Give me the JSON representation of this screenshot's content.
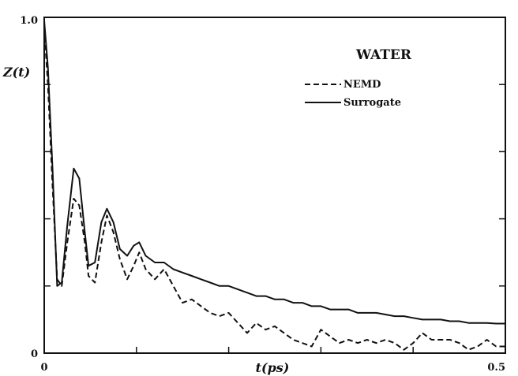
{
  "chart_data": {
    "type": "line",
    "title": "WATER",
    "xlabel": "t(ps)",
    "ylabel": "Z(t)",
    "xlim": [
      0,
      0.5
    ],
    "ylim": [
      0,
      1.0
    ],
    "x_tick_labels": [
      "0",
      "0.5"
    ],
    "y_tick_labels": [
      "0",
      "1.0"
    ],
    "grid": false,
    "legend_position": "top-right",
    "series": [
      {
        "name": "NEMD",
        "style": "dashed",
        "color": "#111111",
        "x": [
          0,
          0.004,
          0.009,
          0.014,
          0.019,
          0.025,
          0.032,
          0.038,
          0.044,
          0.048,
          0.055,
          0.062,
          0.068,
          0.075,
          0.082,
          0.09,
          0.097,
          0.103,
          0.11,
          0.12,
          0.13,
          0.14,
          0.15,
          0.16,
          0.17,
          0.18,
          0.19,
          0.2,
          0.21,
          0.22,
          0.23,
          0.24,
          0.25,
          0.26,
          0.27,
          0.28,
          0.29,
          0.3,
          0.31,
          0.32,
          0.33,
          0.34,
          0.35,
          0.36,
          0.37,
          0.38,
          0.39,
          0.4,
          0.41,
          0.42,
          0.43,
          0.44,
          0.45,
          0.46,
          0.47,
          0.48,
          0.49,
          0.5
        ],
        "y": [
          0.97,
          0.8,
          0.5,
          0.22,
          0.2,
          0.33,
          0.46,
          0.44,
          0.33,
          0.23,
          0.21,
          0.33,
          0.41,
          0.36,
          0.28,
          0.22,
          0.26,
          0.3,
          0.25,
          0.22,
          0.25,
          0.2,
          0.15,
          0.16,
          0.14,
          0.12,
          0.11,
          0.12,
          0.09,
          0.06,
          0.09,
          0.07,
          0.08,
          0.06,
          0.04,
          0.03,
          0.02,
          0.07,
          0.05,
          0.03,
          0.04,
          0.03,
          0.04,
          0.03,
          0.04,
          0.03,
          0.01,
          0.03,
          0.06,
          0.04,
          0.04,
          0.04,
          0.03,
          0.01,
          0.02,
          0.04,
          0.02,
          0.02
        ]
      },
      {
        "name": "Surrogate",
        "style": "solid",
        "color": "#111111",
        "x": [
          0,
          0.004,
          0.009,
          0.014,
          0.019,
          0.025,
          0.032,
          0.038,
          0.044,
          0.048,
          0.055,
          0.062,
          0.068,
          0.075,
          0.082,
          0.09,
          0.097,
          0.103,
          0.11,
          0.12,
          0.13,
          0.14,
          0.15,
          0.16,
          0.17,
          0.18,
          0.19,
          0.2,
          0.21,
          0.22,
          0.23,
          0.24,
          0.25,
          0.26,
          0.27,
          0.28,
          0.29,
          0.3,
          0.31,
          0.32,
          0.33,
          0.34,
          0.35,
          0.36,
          0.37,
          0.38,
          0.39,
          0.4,
          0.41,
          0.42,
          0.43,
          0.44,
          0.45,
          0.46,
          0.47,
          0.48,
          0.49,
          0.5
        ],
        "y": [
          0.99,
          0.85,
          0.55,
          0.2,
          0.21,
          0.38,
          0.55,
          0.52,
          0.36,
          0.26,
          0.27,
          0.39,
          0.43,
          0.39,
          0.31,
          0.29,
          0.32,
          0.33,
          0.29,
          0.27,
          0.27,
          0.25,
          0.24,
          0.23,
          0.22,
          0.21,
          0.2,
          0.2,
          0.19,
          0.18,
          0.17,
          0.17,
          0.16,
          0.16,
          0.15,
          0.15,
          0.14,
          0.14,
          0.13,
          0.13,
          0.13,
          0.12,
          0.12,
          0.12,
          0.115,
          0.11,
          0.11,
          0.105,
          0.1,
          0.1,
          0.1,
          0.095,
          0.095,
          0.09,
          0.09,
          0.09,
          0.088,
          0.088
        ]
      }
    ]
  }
}
